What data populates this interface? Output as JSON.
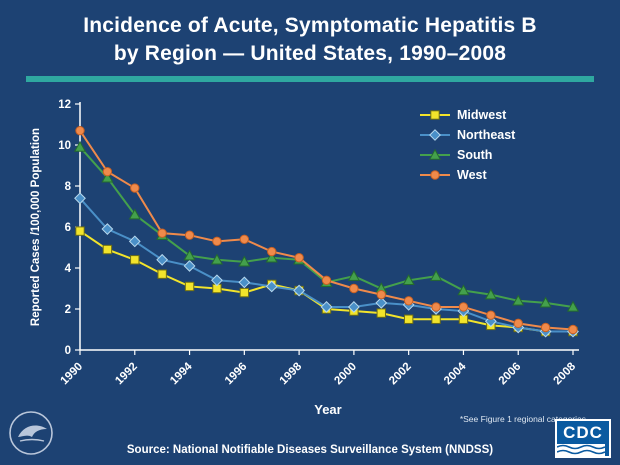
{
  "title": {
    "line1": "Incidence of Acute, Symptomatic Hepatitis B",
    "line2": "by Region — United States, 1990–2008"
  },
  "chart_data": {
    "type": "line",
    "x": [
      1990,
      1991,
      1992,
      1993,
      1994,
      1995,
      1996,
      1997,
      1998,
      1999,
      2000,
      2001,
      2002,
      2003,
      2004,
      2005,
      2006,
      2007,
      2008
    ],
    "series": [
      {
        "name": "Midwest",
        "marker": "square",
        "color": "#f2e42b",
        "edge": "#6e6e14",
        "values": [
          5.8,
          4.9,
          4.4,
          3.7,
          3.1,
          3.0,
          2.8,
          3.2,
          2.9,
          2.0,
          1.9,
          1.8,
          1.5,
          1.5,
          1.5,
          1.2,
          1.1,
          0.9,
          0.9
        ]
      },
      {
        "name": "Northeast",
        "marker": "diamond",
        "color": "#4a90c8",
        "edge": "#b8d9ee",
        "values": [
          7.4,
          5.9,
          5.3,
          4.4,
          4.1,
          3.4,
          3.3,
          3.1,
          2.9,
          2.1,
          2.1,
          2.3,
          2.2,
          2.0,
          1.9,
          1.4,
          1.1,
          0.9,
          0.9
        ]
      },
      {
        "name": "South",
        "marker": "triangle",
        "color": "#44a04c",
        "edge": "#246b2d",
        "values": [
          9.9,
          8.4,
          6.6,
          5.6,
          4.6,
          4.4,
          4.3,
          4.5,
          4.4,
          3.3,
          3.6,
          3.0,
          3.4,
          3.6,
          2.9,
          2.7,
          2.4,
          2.3,
          2.1
        ]
      },
      {
        "name": "West",
        "marker": "circle",
        "color": "#ef8a4b",
        "edge": "#c75f22",
        "values": [
          10.7,
          8.7,
          7.9,
          5.7,
          5.6,
          5.3,
          5.4,
          4.8,
          4.5,
          3.4,
          3.0,
          2.7,
          2.4,
          2.1,
          2.1,
          1.7,
          1.3,
          1.1,
          1.0
        ]
      }
    ],
    "xlabel": "Year",
    "ylabel": "Reported Cases /100,000 Population",
    "ylim": [
      0,
      12
    ],
    "yticks": [
      0,
      2,
      4,
      6,
      8,
      10,
      12
    ],
    "xtick_step": 2,
    "legend_position": "top-right",
    "grid": false,
    "colors": {
      "background": "#1d4273",
      "axis": "#ffffff",
      "title_bar": "#2fa8a0"
    }
  },
  "footnote": "*See Figure 1 regional categories",
  "source": "Source: National Notifiable Diseases Surveillance System (NNDSS)",
  "logos": {
    "cdc_label": "CDC"
  }
}
